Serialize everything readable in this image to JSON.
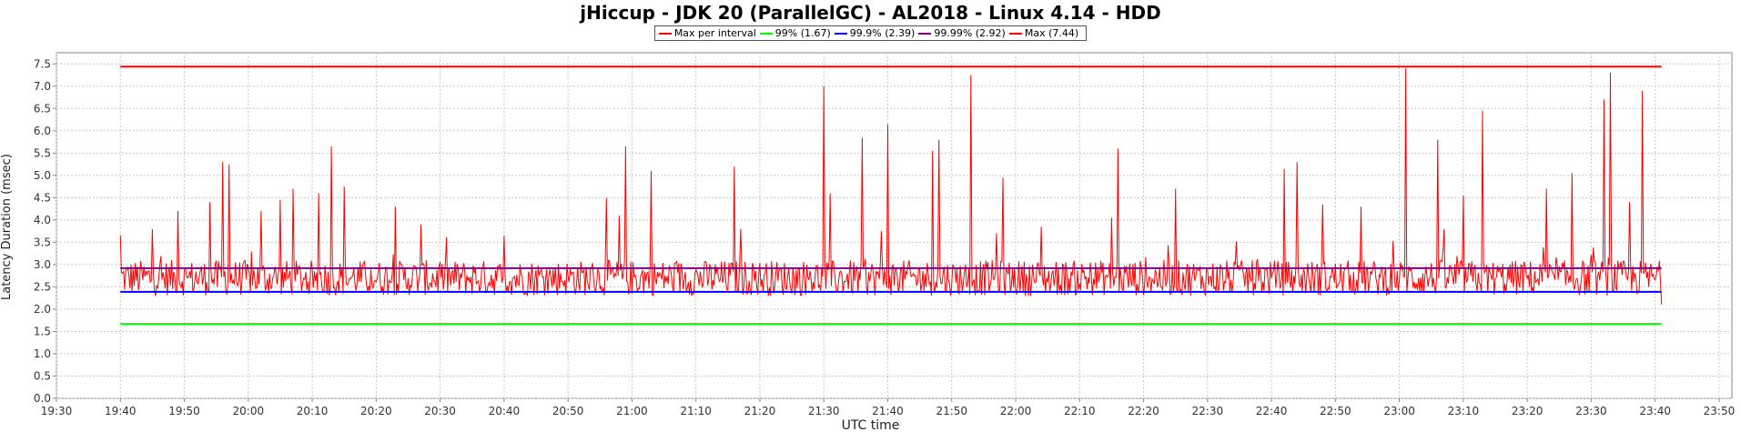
{
  "chart_data": {
    "type": "line",
    "title": "jHiccup - JDK 20 (ParallelGC) - AL2018 - Linux 4.14 - HDD",
    "xlabel": "UTC time",
    "ylabel": "Latency Duration (msec)",
    "ylim": [
      0,
      7.75
    ],
    "xlim": [
      "19:30",
      "23:52"
    ],
    "grid": true,
    "legend_position": "top-center",
    "y_ticks": [
      "0.0",
      "0.5",
      "1.0",
      "1.5",
      "2.0",
      "2.5",
      "3.0",
      "3.5",
      "4.0",
      "4.5",
      "5.0",
      "5.5",
      "6.0",
      "6.5",
      "7.0",
      "7.5"
    ],
    "x_ticks": [
      "19:30",
      "19:40",
      "19:50",
      "20:00",
      "20:10",
      "20:20",
      "20:30",
      "20:40",
      "20:50",
      "21:00",
      "21:10",
      "21:20",
      "21:30",
      "21:40",
      "21:50",
      "22:00",
      "22:10",
      "22:20",
      "22:30",
      "22:40",
      "22:50",
      "23:00",
      "23:10",
      "23:20",
      "23:30",
      "23:40",
      "23:50"
    ],
    "series": [
      {
        "name": "Max per interval",
        "color": "#ff0000",
        "kind": "noisy",
        "time_range": [
          "19:40",
          "23:41"
        ],
        "baseline": [
          2.3,
          3.1
        ],
        "peaks": [
          [
            "19:40",
            3.65
          ],
          [
            "19:45",
            3.8
          ],
          [
            "19:49",
            4.2
          ],
          [
            "19:54",
            4.4
          ],
          [
            "19:56",
            5.3
          ],
          [
            "19:57",
            5.25
          ],
          [
            "20:02",
            4.2
          ],
          [
            "20:05",
            4.45
          ],
          [
            "20:07",
            4.7
          ],
          [
            "20:11",
            4.6
          ],
          [
            "20:13",
            5.65
          ],
          [
            "20:15",
            4.75
          ],
          [
            "20:23",
            4.3
          ],
          [
            "20:27",
            3.9
          ],
          [
            "20:40",
            3.65
          ],
          [
            "20:56",
            4.5
          ],
          [
            "20:58",
            4.1
          ],
          [
            "20:59",
            5.65
          ],
          [
            "21:03",
            5.1
          ],
          [
            "21:16",
            5.2
          ],
          [
            "21:17",
            3.8
          ],
          [
            "21:30",
            7.0
          ],
          [
            "21:31",
            4.6
          ],
          [
            "21:36",
            5.85
          ],
          [
            "21:40",
            6.15
          ],
          [
            "21:39",
            3.75
          ],
          [
            "21:47",
            5.55
          ],
          [
            "21:48",
            5.8
          ],
          [
            "21:53",
            7.25
          ],
          [
            "21:57",
            3.7
          ],
          [
            "21:58",
            4.95
          ],
          [
            "22:04",
            3.85
          ],
          [
            "22:15",
            4.05
          ],
          [
            "22:16",
            5.6
          ],
          [
            "22:25",
            4.7
          ],
          [
            "22:42",
            5.15
          ],
          [
            "22:44",
            5.3
          ],
          [
            "22:48",
            4.35
          ],
          [
            "22:54",
            4.3
          ],
          [
            "23:01",
            7.4
          ],
          [
            "23:06",
            5.8
          ],
          [
            "23:07",
            3.8
          ],
          [
            "23:10",
            4.55
          ],
          [
            "23:13",
            6.45
          ],
          [
            "23:23",
            4.7
          ],
          [
            "23:27",
            5.05
          ],
          [
            "23:32",
            6.7
          ],
          [
            "23:33",
            7.3
          ],
          [
            "23:36",
            4.4
          ],
          [
            "23:38",
            6.9
          ],
          [
            "23:41",
            2.1
          ]
        ]
      },
      {
        "name": "99% (1.67)",
        "color": "#00ff00",
        "kind": "flat",
        "value": 1.67,
        "time_range": [
          "19:40",
          "23:41"
        ]
      },
      {
        "name": "99.9% (2.39)",
        "color": "#0000ff",
        "kind": "flat",
        "value": 2.39,
        "time_range": [
          "19:40",
          "23:41"
        ]
      },
      {
        "name": "99.99% (2.92)",
        "color": "#800080",
        "kind": "flat",
        "value": 2.92,
        "time_range": [
          "19:40",
          "23:41"
        ]
      },
      {
        "name": "Max (7.44)",
        "color": "#ff0000",
        "kind": "flat",
        "value": 7.44,
        "time_range": [
          "19:40",
          "23:41"
        ]
      }
    ]
  }
}
